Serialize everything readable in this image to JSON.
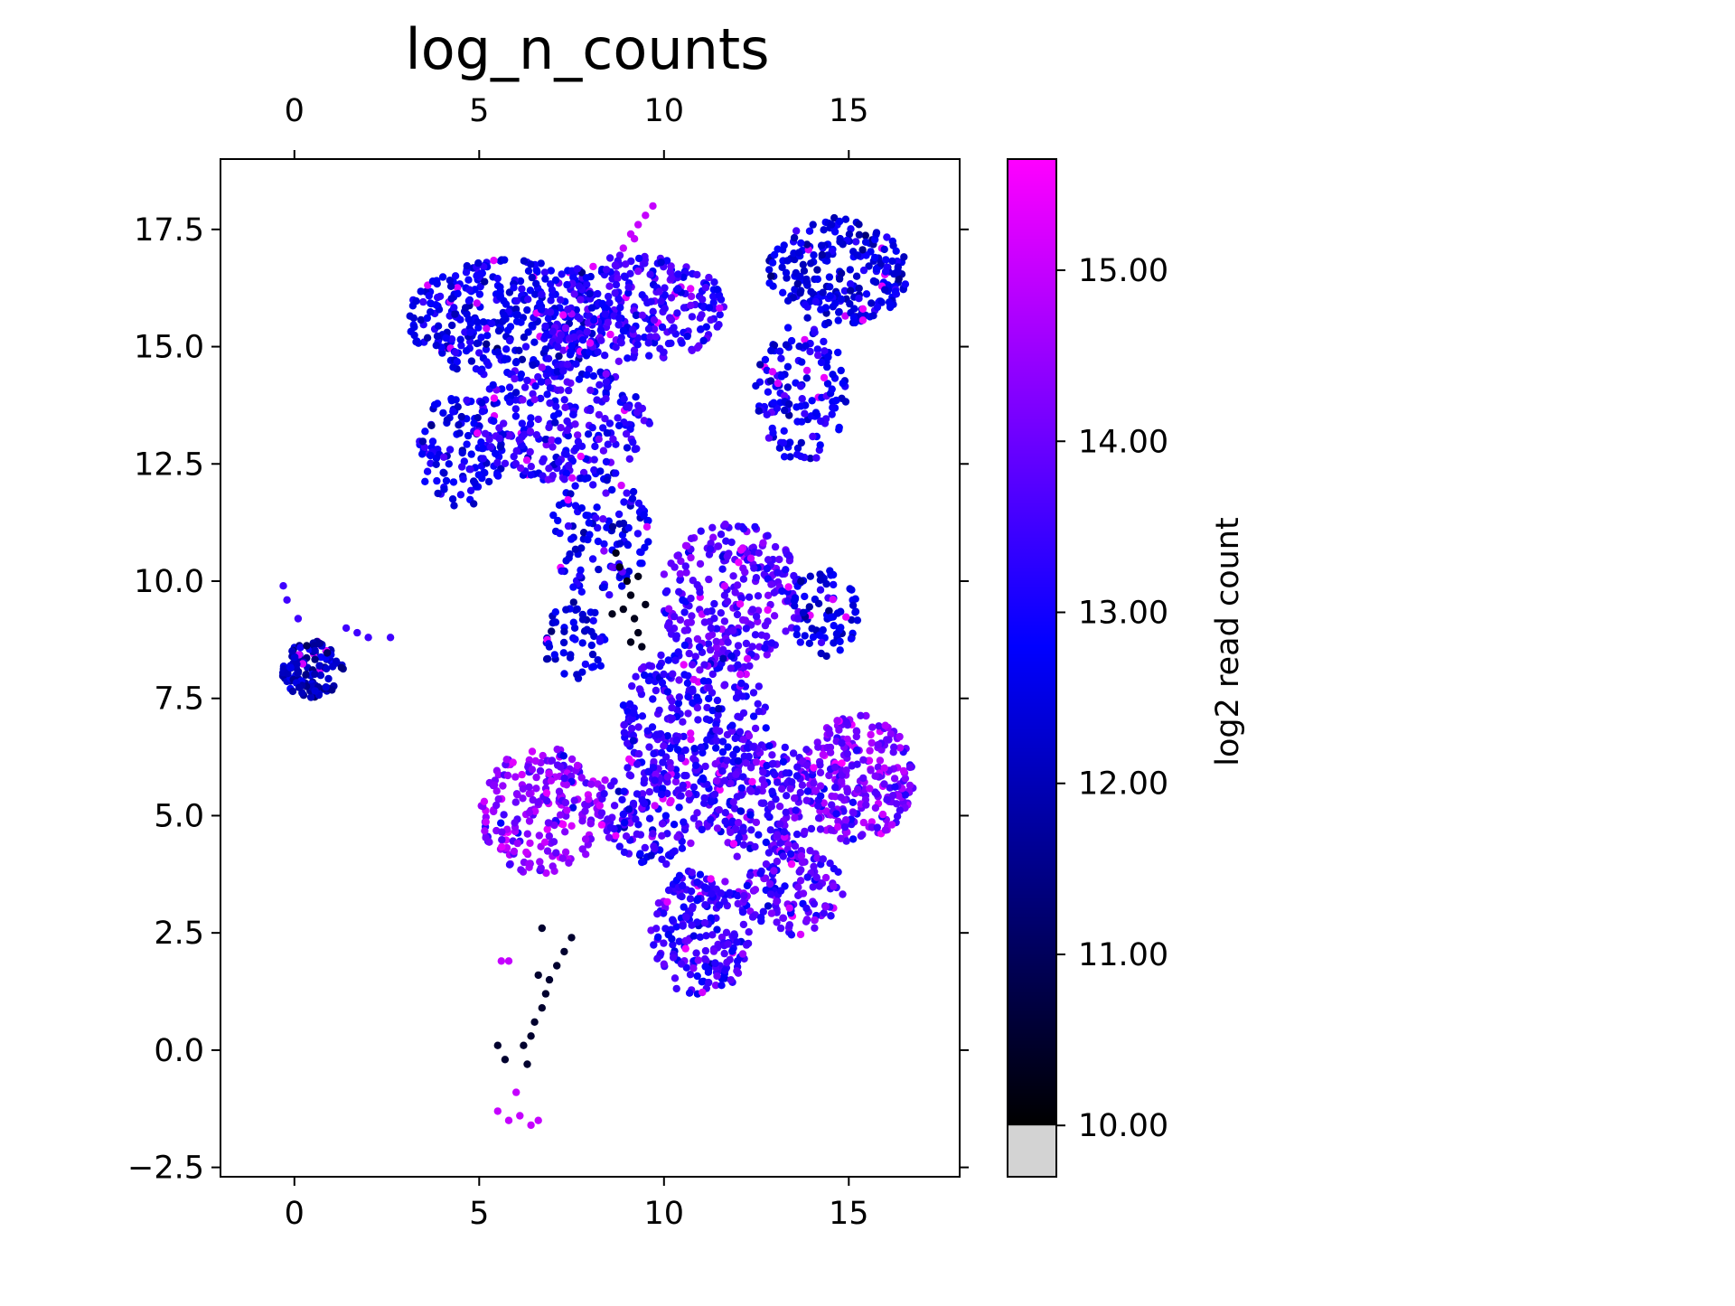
{
  "chart_data": {
    "type": "scatter",
    "title": "log_n_counts",
    "xlabel": "",
    "ylabel": "",
    "xlim": [
      -2,
      18
    ],
    "ylim": [
      -2.7,
      19
    ],
    "x_ticks": [
      {
        "value": 0,
        "label": "0"
      },
      {
        "value": 5,
        "label": "5"
      },
      {
        "value": 10,
        "label": "10"
      },
      {
        "value": 15,
        "label": "15"
      }
    ],
    "y_ticks": [
      {
        "value": -2.5,
        "label": "−2.5"
      },
      {
        "value": 0,
        "label": "0.0"
      },
      {
        "value": 2.5,
        "label": "2.5"
      },
      {
        "value": 5,
        "label": "5.0"
      },
      {
        "value": 7.5,
        "label": "7.5"
      },
      {
        "value": 10,
        "label": "10.0"
      },
      {
        "value": 12.5,
        "label": "12.5"
      },
      {
        "value": 15,
        "label": "15.0"
      },
      {
        "value": 17.5,
        "label": "17.5"
      }
    ],
    "mirror_ticks_top_right": true,
    "grid": false,
    "colorbar": {
      "label": "log2 read count",
      "range": [
        9.7,
        15.65
      ],
      "under_value": 9.98,
      "under_color": "#d3d3d3",
      "colormap": [
        "#000000",
        "#0000ff",
        "#ff00ff"
      ],
      "colormap_stops": [
        10.0,
        12.8,
        15.65
      ],
      "ticks": [
        {
          "value": 10,
          "label": "10.00"
        },
        {
          "value": 11,
          "label": "11.00"
        },
        {
          "value": 12,
          "label": "12.00"
        },
        {
          "value": 13,
          "label": "13.00"
        },
        {
          "value": 14,
          "label": "14.00"
        },
        {
          "value": 15,
          "label": "15.00"
        }
      ]
    },
    "clusters": [
      {
        "cx": 5.8,
        "cy": 15.6,
        "rx": 2.6,
        "ry": 1.2,
        "n": 340,
        "mean": 12.7,
        "sd": 0.4
      },
      {
        "cx": 9.0,
        "cy": 15.8,
        "rx": 2.6,
        "ry": 1.1,
        "n": 340,
        "mean": 13.3,
        "sd": 0.45
      },
      {
        "cx": 4.5,
        "cy": 12.8,
        "rx": 1.1,
        "ry": 1.2,
        "n": 110,
        "mean": 12.8,
        "sd": 0.4
      },
      {
        "cx": 7.2,
        "cy": 13.4,
        "rx": 2.3,
        "ry": 1.2,
        "n": 280,
        "mean": 13.2,
        "sd": 0.45
      },
      {
        "cx": 8.3,
        "cy": 11.0,
        "rx": 1.3,
        "ry": 1.3,
        "n": 120,
        "mean": 12.8,
        "sd": 0.4
      },
      {
        "cx": 7.6,
        "cy": 8.7,
        "rx": 0.8,
        "ry": 0.9,
        "n": 55,
        "mean": 12.5,
        "sd": 0.4
      },
      {
        "cx": 14.7,
        "cy": 16.6,
        "rx": 1.8,
        "ry": 1.1,
        "n": 240,
        "mean": 12.5,
        "sd": 0.4
      },
      {
        "cx": 13.7,
        "cy": 14.0,
        "rx": 1.2,
        "ry": 1.4,
        "n": 140,
        "mean": 12.8,
        "sd": 0.4
      },
      {
        "cx": 11.8,
        "cy": 9.7,
        "rx": 1.8,
        "ry": 1.5,
        "n": 260,
        "mean": 13.7,
        "sd": 0.4
      },
      {
        "cx": 14.3,
        "cy": 9.3,
        "rx": 0.9,
        "ry": 0.9,
        "n": 80,
        "mean": 12.6,
        "sd": 0.4
      },
      {
        "cx": 10.8,
        "cy": 7.0,
        "rx": 1.9,
        "ry": 1.6,
        "n": 300,
        "mean": 13.3,
        "sd": 0.45
      },
      {
        "cx": 6.7,
        "cy": 5.1,
        "rx": 1.6,
        "ry": 1.3,
        "n": 230,
        "mean": 14.3,
        "sd": 0.5
      },
      {
        "cx": 9.8,
        "cy": 5.2,
        "rx": 1.5,
        "ry": 1.2,
        "n": 170,
        "mean": 13.4,
        "sd": 0.45
      },
      {
        "cx": 15.2,
        "cy": 5.8,
        "rx": 1.5,
        "ry": 1.3,
        "n": 260,
        "mean": 14.1,
        "sd": 0.5
      },
      {
        "cx": 12.8,
        "cy": 5.2,
        "rx": 1.5,
        "ry": 1.3,
        "n": 210,
        "mean": 13.5,
        "sd": 0.45
      },
      {
        "cx": 11.0,
        "cy": 2.5,
        "rx": 1.3,
        "ry": 1.3,
        "n": 210,
        "mean": 13.4,
        "sd": 0.45
      },
      {
        "cx": 13.5,
        "cy": 3.4,
        "rx": 1.3,
        "ry": 0.9,
        "n": 130,
        "mean": 13.7,
        "sd": 0.45
      },
      {
        "cx": 0.5,
        "cy": 8.1,
        "rx": 0.8,
        "ry": 0.6,
        "n": 120,
        "mean": 12.0,
        "sd": 0.4
      }
    ],
    "point_groups": [
      {
        "name": "pink-tail-top",
        "points": [
          [
            8.9,
            17.1
          ],
          [
            9.1,
            17.4
          ],
          [
            9.3,
            17.6
          ],
          [
            9.5,
            17.8
          ],
          [
            9.7,
            18.0
          ],
          [
            9.2,
            17.3
          ]
        ],
        "value": 15.0
      },
      {
        "name": "dark-strand-center",
        "points": [
          [
            8.7,
            10.6
          ],
          [
            8.8,
            10.3
          ],
          [
            9.0,
            10.0
          ],
          [
            9.1,
            9.7
          ],
          [
            8.9,
            9.4
          ],
          [
            9.2,
            9.2
          ],
          [
            9.3,
            8.9
          ],
          [
            9.4,
            8.6
          ],
          [
            9.1,
            8.7
          ],
          [
            9.5,
            9.5
          ],
          [
            9.3,
            10.1
          ],
          [
            8.6,
            9.3
          ]
        ],
        "value": 10.3
      },
      {
        "name": "dark-strand-lower",
        "points": [
          [
            7.5,
            2.4
          ],
          [
            7.3,
            2.1
          ],
          [
            7.1,
            1.8
          ],
          [
            6.9,
            1.5
          ],
          [
            6.8,
            1.2
          ],
          [
            6.7,
            0.9
          ],
          [
            6.5,
            0.6
          ],
          [
            6.4,
            0.3
          ],
          [
            6.2,
            0.1
          ],
          [
            5.5,
            0.1
          ],
          [
            5.7,
            -0.2
          ],
          [
            6.3,
            -0.3
          ],
          [
            6.7,
            2.6
          ],
          [
            6.6,
            1.6
          ]
        ],
        "value": 10.5
      },
      {
        "name": "pink-points-bottom",
        "points": [
          [
            5.5,
            -1.3
          ],
          [
            5.8,
            -1.5
          ],
          [
            6.1,
            -1.4
          ],
          [
            6.4,
            -1.6
          ],
          [
            6.6,
            -1.5
          ],
          [
            6.0,
            -0.9
          ],
          [
            5.6,
            1.9
          ],
          [
            5.8,
            1.9
          ]
        ],
        "value": 15.0
      },
      {
        "name": "small-cluster-outliers",
        "points": [
          [
            -0.3,
            9.9
          ],
          [
            -0.2,
            9.6
          ],
          [
            1.4,
            9.0
          ],
          [
            1.7,
            8.9
          ],
          [
            2.0,
            8.8
          ],
          [
            2.6,
            8.8
          ],
          [
            0.1,
            9.2
          ]
        ],
        "value": 13.5
      }
    ]
  }
}
